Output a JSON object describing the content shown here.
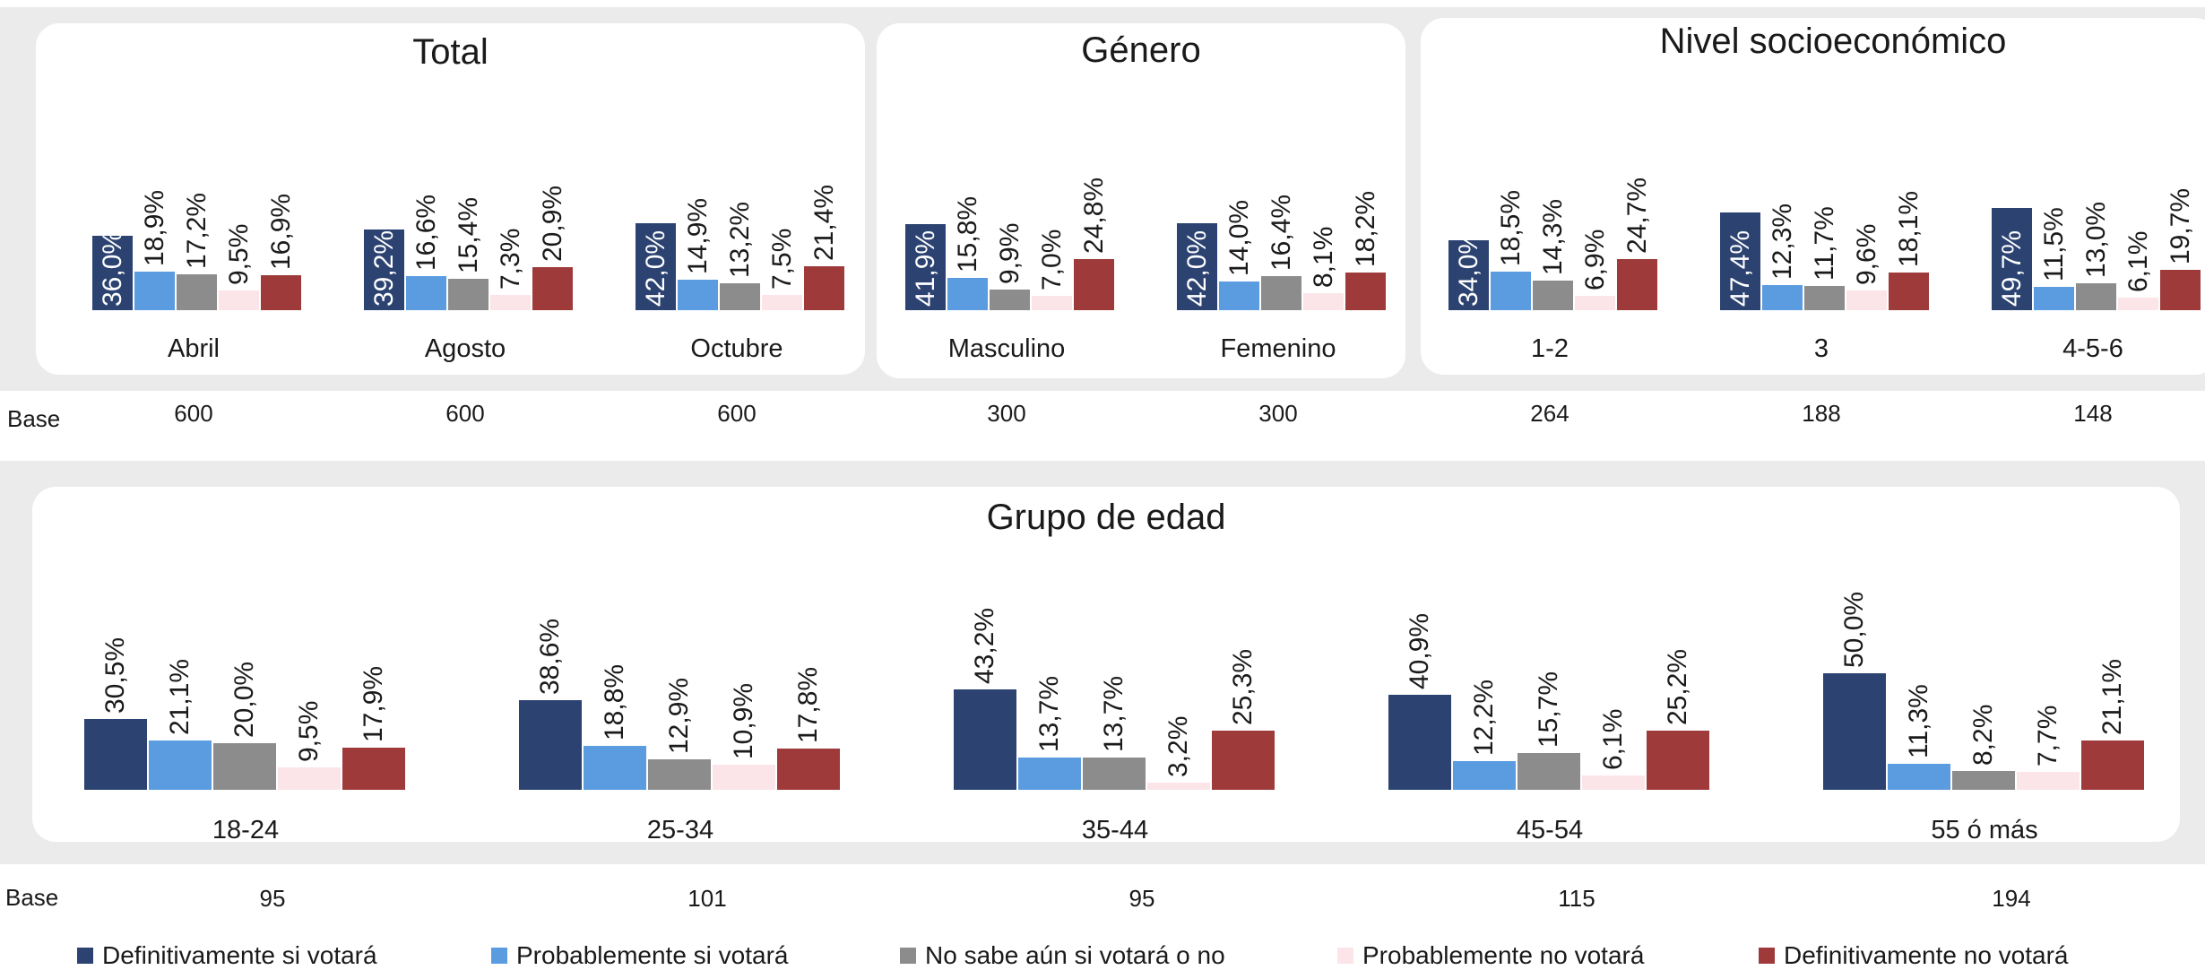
{
  "colors": {
    "def_si": "#2c4372",
    "prob_si": "#5b9be0",
    "no_sabe": "#8c8c8c",
    "prob_no": "#fbe5e8",
    "def_no": "#9e3a3a"
  },
  "base_label": "Base",
  "legend": [
    {
      "label": "Definitivamente si votará",
      "color_key": "def_si"
    },
    {
      "label": "Probablemente si votará",
      "color_key": "prob_si"
    },
    {
      "label": "No sabe aún si votará o no",
      "color_key": "no_sabe"
    },
    {
      "label": "Probablemente no votará",
      "color_key": "prob_no"
    },
    {
      "label": "Definitivamente no votará",
      "color_key": "def_no"
    }
  ],
  "chart_data": [
    {
      "type": "bar",
      "title": "Total",
      "categories": [
        "Abril",
        "Agosto",
        "Octubre"
      ],
      "bases": [
        "600",
        "600",
        "600"
      ],
      "series": [
        {
          "name": "Definitivamente si votará",
          "values": [
            36.0,
            39.2,
            42.0
          ]
        },
        {
          "name": "Probablemente si votará",
          "values": [
            18.9,
            16.6,
            14.9
          ]
        },
        {
          "name": "No sabe aún si votará o no",
          "values": [
            17.2,
            15.4,
            13.2
          ]
        },
        {
          "name": "Probablemente no votará",
          "values": [
            9.5,
            7.3,
            7.5
          ]
        },
        {
          "name": "Definitivamente no votará",
          "values": [
            16.9,
            20.9,
            21.4
          ]
        }
      ],
      "labels": [
        [
          "36,0%",
          "39,2%",
          "42,0%"
        ],
        [
          "18,9%",
          "16,6%",
          "14,9%"
        ],
        [
          "17,2%",
          "15,4%",
          "13,2%"
        ],
        [
          "9,5%",
          "7,3%",
          "7,5%"
        ],
        [
          "16,9%",
          "20,9%",
          "21,4%"
        ]
      ]
    },
    {
      "type": "bar",
      "title": "Género",
      "categories": [
        "Masculino",
        "Femenino"
      ],
      "bases": [
        "300",
        "300"
      ],
      "series": [
        {
          "name": "Definitivamente si votará",
          "values": [
            41.9,
            42.0
          ]
        },
        {
          "name": "Probablemente si votará",
          "values": [
            15.8,
            14.0
          ]
        },
        {
          "name": "No sabe aún si votará o no",
          "values": [
            9.9,
            16.4
          ]
        },
        {
          "name": "Probablemente no votará",
          "values": [
            7.0,
            8.1
          ]
        },
        {
          "name": "Definitivamente no votará",
          "values": [
            24.8,
            18.2
          ]
        }
      ],
      "labels": [
        [
          "41,9%",
          "42,0%"
        ],
        [
          "15,8%",
          "14,0%"
        ],
        [
          "9,9%",
          "16,4%"
        ],
        [
          "7,0%",
          "8,1%"
        ],
        [
          "24,8%",
          "18,2%"
        ]
      ]
    },
    {
      "type": "bar",
      "title": "Nivel socioeconómico",
      "categories": [
        "1-2",
        "3",
        "4-5-6"
      ],
      "bases": [
        "264",
        "188",
        "148"
      ],
      "series": [
        {
          "name": "Definitivamente si votará",
          "values": [
            34.0,
            47.4,
            49.7
          ]
        },
        {
          "name": "Probablemente si votará",
          "values": [
            18.5,
            12.3,
            11.5
          ]
        },
        {
          "name": "No sabe aún si votará o no",
          "values": [
            14.3,
            11.7,
            13.0
          ]
        },
        {
          "name": "Probablemente no votará",
          "values": [
            6.9,
            9.6,
            6.1
          ]
        },
        {
          "name": "Definitivamente no votará",
          "values": [
            24.7,
            18.1,
            19.7
          ]
        }
      ],
      "labels": [
        [
          "34,0%",
          "47,4%",
          "49,7%"
        ],
        [
          "18,5%",
          "12,3%",
          "11,5%"
        ],
        [
          "14,3%",
          "11,7%",
          "13,0%"
        ],
        [
          "6,9%",
          "9,6%",
          "6,1%"
        ],
        [
          "24,7%",
          "18,1%",
          "19,7%"
        ]
      ]
    },
    {
      "type": "bar",
      "title": "Grupo de edad",
      "categories": [
        "18-24",
        "25-34",
        "35-44",
        "45-54",
        "55 ó más"
      ],
      "bases": [
        "95",
        "101",
        "95",
        "115",
        "194"
      ],
      "series": [
        {
          "name": "Definitivamente si votará",
          "values": [
            30.5,
            38.6,
            43.2,
            40.9,
            50.0
          ]
        },
        {
          "name": "Probablemente si votará",
          "values": [
            21.1,
            18.8,
            13.7,
            12.2,
            11.3
          ]
        },
        {
          "name": "No sabe aún si votará o no",
          "values": [
            20.0,
            12.9,
            13.7,
            15.7,
            8.2
          ]
        },
        {
          "name": "Probablemente no votará",
          "values": [
            9.5,
            10.9,
            3.2,
            6.1,
            7.7
          ]
        },
        {
          "name": "Definitivamente no votará",
          "values": [
            17.9,
            17.8,
            25.3,
            25.2,
            21.1
          ]
        }
      ],
      "labels": [
        [
          "30,5%",
          "38,6%",
          "43,2%",
          "40,9%",
          "50,0%"
        ],
        [
          "21,1%",
          "18,8%",
          "13,7%",
          "12,2%",
          "11,3%"
        ],
        [
          "20,0%",
          "12,9%",
          "13,7%",
          "15,7%",
          "8,2%"
        ],
        [
          "9,5%",
          "10,9%",
          "3,2%",
          "6,1%",
          "7,7%"
        ],
        [
          "17,9%",
          "17,8%",
          "25,3%",
          "25,2%",
          "21,1%"
        ]
      ]
    }
  ]
}
